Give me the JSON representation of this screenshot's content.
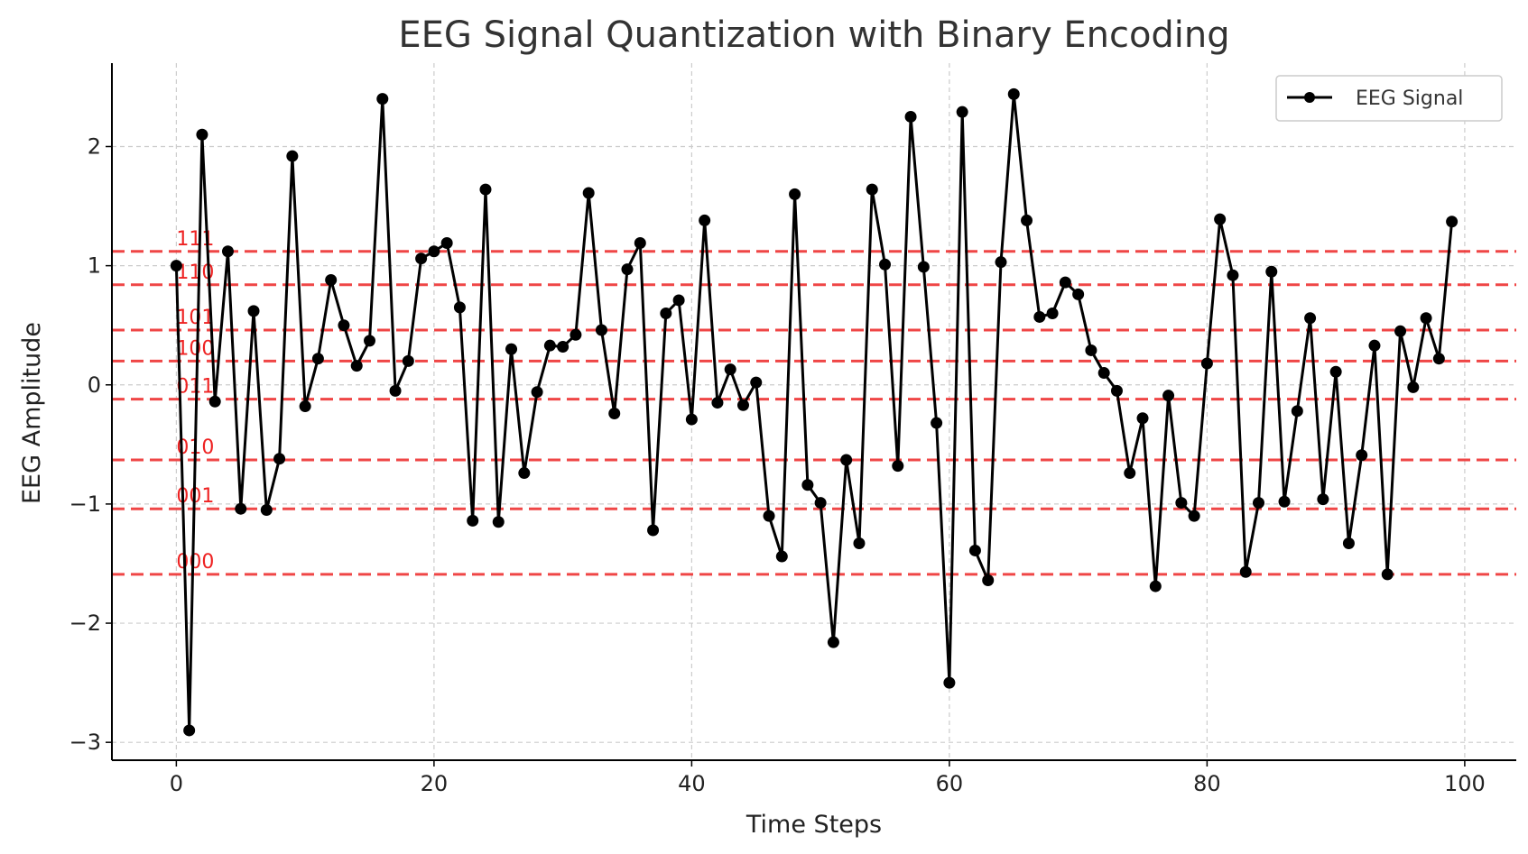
{
  "chart_data": {
    "type": "line",
    "title": "EEG Signal Quantization with Binary Encoding",
    "xlabel": "Time Steps",
    "ylabel": "EEG Amplitude",
    "xlim": [
      -5,
      104
    ],
    "ylim": [
      -3.15,
      2.7
    ],
    "xticks": [
      0,
      20,
      40,
      60,
      80,
      100
    ],
    "yticks": [
      -3,
      -2,
      -1,
      0,
      1,
      2
    ],
    "grid": true,
    "legend_position": "top-right",
    "series": [
      {
        "name": "EEG Signal",
        "color": "#000000",
        "marker": "circle",
        "x": [
          0,
          1,
          2,
          3,
          4,
          5,
          6,
          7,
          8,
          9,
          10,
          11,
          12,
          13,
          14,
          15,
          16,
          17,
          18,
          19,
          20,
          21,
          22,
          23,
          24,
          25,
          26,
          27,
          28,
          29,
          30,
          31,
          32,
          33,
          34,
          35,
          36,
          37,
          38,
          39,
          40,
          41,
          42,
          43,
          44,
          45,
          46,
          47,
          48,
          49,
          50,
          51,
          52,
          53,
          54,
          55,
          56,
          57,
          58,
          59,
          60,
          61,
          62,
          63,
          64,
          65,
          66,
          67,
          68,
          69,
          70,
          71,
          72,
          73,
          74,
          75,
          76,
          77,
          78,
          79,
          80,
          81,
          82,
          83,
          84,
          85,
          86,
          87,
          88,
          89,
          90,
          91,
          92,
          93,
          94,
          95,
          96,
          97,
          98,
          99
        ],
        "values": [
          1.0,
          -2.9,
          2.1,
          -0.14,
          1.12,
          -1.04,
          0.62,
          -1.05,
          -0.62,
          1.92,
          -0.18,
          0.22,
          0.88,
          0.5,
          0.16,
          0.37,
          2.4,
          -0.05,
          0.2,
          1.06,
          1.12,
          1.19,
          0.65,
          -1.14,
          1.64,
          -1.15,
          0.3,
          -0.74,
          -0.06,
          0.33,
          0.32,
          0.42,
          1.61,
          0.46,
          -0.24,
          0.97,
          1.19,
          -1.22,
          0.6,
          0.71,
          -0.29,
          1.38,
          -0.15,
          0.13,
          -0.17,
          0.02,
          -1.1,
          -1.44,
          1.6,
          -0.84,
          -0.99,
          -2.16,
          -0.63,
          -1.33,
          1.64,
          1.01,
          -0.68,
          2.25,
          0.99,
          -0.32,
          -2.5,
          2.29,
          -1.39,
          -1.64,
          1.03,
          2.44,
          1.38,
          0.57,
          0.6,
          0.86,
          0.76,
          0.29,
          0.1,
          -0.05,
          -0.74,
          -0.28,
          -1.69,
          -0.09,
          -0.99,
          -1.1,
          0.18,
          1.39,
          0.92,
          -1.57,
          -0.99,
          0.95,
          -0.98,
          -0.22,
          0.56,
          -0.96,
          0.11,
          -1.33,
          -0.59,
          0.33,
          -1.59,
          0.45,
          -0.02,
          0.56,
          0.22,
          1.37
        ]
      }
    ],
    "quantization_levels": {
      "color": "#ee3333",
      "levels": [
        {
          "code": "000",
          "y": -1.59
        },
        {
          "code": "001",
          "y": -1.04
        },
        {
          "code": "010",
          "y": -0.63
        },
        {
          "code": "011",
          "y": -0.12
        },
        {
          "code": "100",
          "y": 0.2
        },
        {
          "code": "101",
          "y": 0.46
        },
        {
          "code": "110",
          "y": 0.84
        },
        {
          "code": "111",
          "y": 1.12
        }
      ]
    }
  }
}
